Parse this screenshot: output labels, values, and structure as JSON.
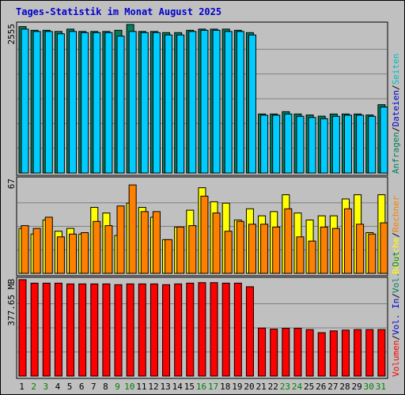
{
  "title": "Tages-Statistik im Monat August 2025",
  "colors": {
    "background": "#c0c0c0",
    "panel": "#c0c0c0",
    "grid": "#808080",
    "anfragen": "#008060",
    "dateien": "#00ccff",
    "seiten": "#00a0a0",
    "besuche": "#ffff00",
    "rechner": "#ff8000",
    "volumen": "#ff0000",
    "weekday_label": "#000000",
    "weekend_label": "#008000"
  },
  "x_labels": [
    "1",
    "2",
    "3",
    "4",
    "5",
    "6",
    "7",
    "8",
    "9",
    "10",
    "11",
    "12",
    "13",
    "14",
    "15",
    "16",
    "17",
    "18",
    "19",
    "20",
    "21",
    "22",
    "23",
    "24",
    "25",
    "26",
    "27",
    "28",
    "29",
    "30",
    "31"
  ],
  "weekend_days": [
    2,
    3,
    9,
    10,
    16,
    17,
    23,
    24,
    30,
    31
  ],
  "chart_data": [
    {
      "type": "bar",
      "name": "hits",
      "ylabel": "2555",
      "ymax": 2555,
      "side_legend": [
        {
          "text": "Anfragen",
          "color": "#008060"
        },
        {
          "text": "/",
          "color": "#000000"
        },
        {
          "text": "Dateien",
          "color": "#0000cc"
        },
        {
          "text": "/",
          "color": "#000000"
        },
        {
          "text": "Seiten",
          "color": "#00c0c0"
        }
      ],
      "categories": [
        "1",
        "2",
        "3",
        "4",
        "5",
        "6",
        "7",
        "8",
        "9",
        "10",
        "11",
        "12",
        "13",
        "14",
        "15",
        "16",
        "17",
        "18",
        "19",
        "20",
        "21",
        "22",
        "23",
        "24",
        "25",
        "26",
        "27",
        "28",
        "29",
        "30",
        "31"
      ],
      "series": [
        {
          "name": "Anfragen",
          "values": [
            2519,
            2455,
            2455,
            2435,
            2475,
            2435,
            2435,
            2435,
            2455,
            2555,
            2435,
            2435,
            2415,
            2415,
            2455,
            2475,
            2475,
            2475,
            2455,
            2415,
            1015,
            1015,
            1055,
            1015,
            998,
            978,
            1015,
            1015,
            1015,
            998,
            1175
          ]
        },
        {
          "name": "Dateien",
          "values": [
            2475,
            2435,
            2435,
            2395,
            2435,
            2415,
            2415,
            2415,
            2355,
            2435,
            2415,
            2415,
            2375,
            2375,
            2435,
            2455,
            2455,
            2435,
            2435,
            2375,
            995,
            995,
            1015,
            975,
            955,
            935,
            975,
            995,
            995,
            975,
            1135
          ]
        }
      ]
    },
    {
      "type": "bar",
      "name": "visits",
      "ylabel": "67",
      "ymax": 67,
      "side_legend": [
        {
          "text": "Besuche",
          "color": "#ffff00"
        },
        {
          "text": "/",
          "color": "#000000"
        },
        {
          "text": "Rechner",
          "color": "#ff8000"
        }
      ],
      "categories": [
        "1",
        "2",
        "3",
        "4",
        "5",
        "6",
        "7",
        "8",
        "9",
        "10",
        "11",
        "12",
        "13",
        "14",
        "15",
        "16",
        "17",
        "18",
        "19",
        "20",
        "21",
        "22",
        "23",
        "24",
        "25",
        "26",
        "27",
        "28",
        "29",
        "30",
        "31"
      ],
      "series": [
        {
          "name": "Besuche",
          "values": [
            32,
            28,
            38,
            30,
            32,
            28,
            47,
            43,
            27,
            50,
            47,
            40,
            24,
            33,
            45,
            61,
            51,
            50,
            38,
            46,
            41,
            44,
            56,
            43,
            38,
            41,
            41,
            53,
            56,
            29,
            56
          ]
        },
        {
          "name": "Rechner",
          "values": [
            34,
            32,
            40,
            26,
            28,
            29,
            37,
            34,
            48,
            63,
            44,
            44,
            24,
            33,
            34,
            55,
            43,
            30,
            37,
            35,
            35,
            33,
            46,
            26,
            23,
            33,
            32,
            46,
            35,
            28,
            36
          ]
        }
      ]
    },
    {
      "type": "bar",
      "name": "volume",
      "ylabel": "377.65 MB",
      "ymax": 377.65,
      "side_legend": [
        {
          "text": "Volumen",
          "color": "#ff0000"
        },
        {
          "text": "/",
          "color": "#000000"
        },
        {
          "text": "Vol. In",
          "color": "#0000cc"
        },
        {
          "text": "/",
          "color": "#000000"
        },
        {
          "text": "Vol. Out",
          "color": "#008060"
        }
      ],
      "categories": [
        "1",
        "2",
        "3",
        "4",
        "5",
        "6",
        "7",
        "8",
        "9",
        "10",
        "11",
        "12",
        "13",
        "14",
        "15",
        "16",
        "17",
        "18",
        "19",
        "20",
        "21",
        "22",
        "23",
        "24",
        "25",
        "26",
        "27",
        "28",
        "29",
        "30",
        "31"
      ],
      "series": [
        {
          "name": "Volumen",
          "values": [
            377.65,
            364,
            364,
            364,
            361,
            361,
            361,
            361,
            358,
            361,
            361,
            361,
            358,
            361,
            364,
            366,
            366,
            364,
            364,
            350,
            188,
            184,
            187,
            187,
            182,
            170,
            177,
            180,
            182,
            182,
            182
          ]
        }
      ]
    }
  ]
}
